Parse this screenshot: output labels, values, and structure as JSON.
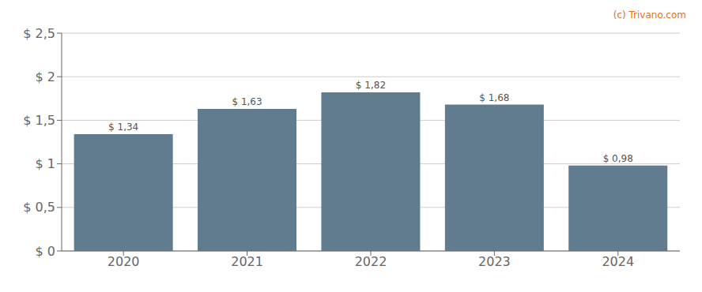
{
  "chart_data": {
    "type": "bar",
    "categories": [
      "2020",
      "2021",
      "2022",
      "2023",
      "2024"
    ],
    "values": [
      1.34,
      1.63,
      1.82,
      1.68,
      0.98
    ],
    "value_labels": [
      "$ 1,34",
      "$ 1,63",
      "$ 1,82",
      "$ 1,68",
      "$ 0,98"
    ],
    "data_labels": true,
    "color": "#607c8e",
    "ylim": [
      0,
      2.5
    ],
    "yticks": [
      {
        "value": 0,
        "label": "$ 0"
      },
      {
        "value": 0.5,
        "label": "$ 0,5"
      },
      {
        "value": 1.0,
        "label": "$ 1"
      },
      {
        "value": 1.5,
        "label": "$ 1,5"
      },
      {
        "value": 2.0,
        "label": "$ 2"
      },
      {
        "value": 2.5,
        "label": "$ 2,5"
      }
    ],
    "grid": true,
    "annotations": [
      "(c) Trivano.com"
    ]
  }
}
